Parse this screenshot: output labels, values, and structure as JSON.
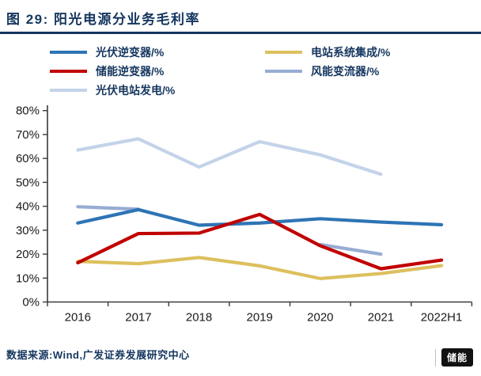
{
  "header": {
    "title": "图 29: 阳光电源分业务毛利率"
  },
  "colors": {
    "accent_navy": "#15365f",
    "axis": "#3a3a3a",
    "tick_text": "#1a1a1a",
    "pv_inverter_blue": "#2e74b5",
    "storage_inverter_red": "#c00000",
    "station_integration_gold": "#ddc05e",
    "wind_converter_bluegray": "#97acd3",
    "pv_generation_lightblue": "#c3d3e9"
  },
  "legend": {
    "items": [
      {
        "label": "光伏逆变器/%",
        "color": "#2e74b5"
      },
      {
        "label": "电站系统集成/%",
        "color": "#ddc05e"
      },
      {
        "label": "储能逆变器/%",
        "color": "#c00000"
      },
      {
        "label": "风能变流器/%",
        "color": "#97acd3"
      },
      {
        "label": "光伏电站发电/%",
        "color": "#c3d3e9"
      }
    ]
  },
  "chart_data": {
    "type": "line",
    "title": "阳光电源分业务毛利率",
    "categories": [
      "2016",
      "2017",
      "2018",
      "2019",
      "2020",
      "2021",
      "2022H1"
    ],
    "series": [
      {
        "name": "光伏逆变器/%",
        "color": "#2e74b5",
        "z": 3,
        "values": [
          33.0,
          38.6,
          32.1,
          33.0,
          34.8,
          33.4,
          32.3
        ]
      },
      {
        "name": "储能逆变器/%",
        "color": "#c00000",
        "z": 4,
        "values": [
          16.4,
          28.6,
          28.8,
          36.6,
          23.5,
          13.9,
          17.5
        ]
      },
      {
        "name": "光伏电站发电/%",
        "color": "#c3d3e9",
        "z": 0,
        "values": [
          63.5,
          68.2,
          56.4,
          67.0,
          61.5,
          53.4,
          null
        ]
      },
      {
        "name": "电站系统集成/%",
        "color": "#ddc05e",
        "z": 2,
        "values": [
          17.0,
          16.0,
          18.6,
          15.1,
          9.8,
          11.9,
          15.2
        ]
      },
      {
        "name": "风能变流器/%",
        "color": "#97acd3",
        "z": 1,
        "values": [
          39.8,
          38.8,
          null,
          null,
          24.0,
          20.0,
          null
        ]
      }
    ],
    "ylabel": "",
    "xlabel": "",
    "ylim": [
      0,
      80
    ],
    "ytick_step": 10,
    "ytick_format": "percent",
    "grid": false,
    "legend_position": "top"
  },
  "footer": {
    "source": "数据来源:Wind,广发证券发展研究中心"
  },
  "watermark": {
    "label": "储能"
  }
}
